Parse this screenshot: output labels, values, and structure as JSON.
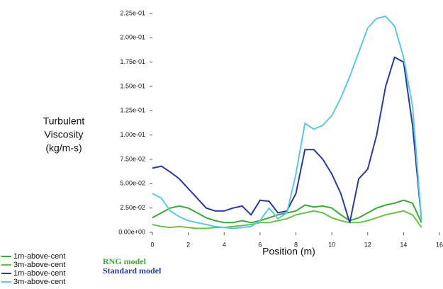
{
  "chart_data": {
    "type": "line",
    "y_label": [
      "Turbulent",
      "Viscosity",
      "(kg/m-s)"
    ],
    "x_label": "Position (m)",
    "x": [
      0,
      0.5,
      1,
      1.5,
      2,
      2.5,
      3,
      3.5,
      4,
      4.5,
      5,
      5.5,
      6,
      6.5,
      7,
      7.5,
      8,
      8.5,
      9,
      9.5,
      10,
      10.5,
      11,
      11.5,
      12,
      12.5,
      13,
      13.5,
      14,
      14.5,
      15
    ],
    "series": [
      {
        "name": "1m-above-cent",
        "color": "#3aa83a",
        "values": [
          0.015,
          0.02,
          0.025,
          0.027,
          0.025,
          0.02,
          0.015,
          0.012,
          0.01,
          0.01,
          0.012,
          0.01,
          0.012,
          0.015,
          0.018,
          0.02,
          0.022,
          0.028,
          0.026,
          0.027,
          0.025,
          0.018,
          0.012,
          0.015,
          0.02,
          0.025,
          0.028,
          0.03,
          0.033,
          0.03,
          0.01
        ]
      },
      {
        "name": "3m-above-cent",
        "color": "#6cc04a",
        "values": [
          0.008,
          0.006,
          0.005,
          0.006,
          0.005,
          0.004,
          0.004,
          0.005,
          0.005,
          0.006,
          0.007,
          0.008,
          0.01,
          0.01,
          0.012,
          0.014,
          0.018,
          0.02,
          0.022,
          0.02,
          0.015,
          0.012,
          0.01,
          0.01,
          0.012,
          0.015,
          0.018,
          0.02,
          0.022,
          0.018,
          0.005
        ]
      },
      {
        "name": "1m-above-cent",
        "color": "#2a3a9a",
        "values": [
          0.066,
          0.068,
          0.062,
          0.055,
          0.045,
          0.035,
          0.025,
          0.022,
          0.022,
          0.025,
          0.027,
          0.018,
          0.033,
          0.032,
          0.02,
          0.022,
          0.04,
          0.085,
          0.085,
          0.075,
          0.06,
          0.04,
          0.01,
          0.055,
          0.065,
          0.1,
          0.15,
          0.18,
          0.175,
          0.11,
          0.012
        ]
      },
      {
        "name": "3m-above-cent",
        "color": "#5cc8e0",
        "values": [
          0.04,
          0.035,
          0.022,
          0.016,
          0.012,
          0.01,
          0.008,
          0.006,
          0.005,
          0.004,
          0.005,
          0.006,
          0.012,
          0.025,
          0.014,
          0.02,
          0.06,
          0.112,
          0.106,
          0.11,
          0.12,
          0.138,
          0.16,
          0.185,
          0.21,
          0.22,
          0.222,
          0.212,
          0.18,
          0.13,
          0.012
        ]
      }
    ],
    "annotations": [
      {
        "text": "RNG model",
        "color": "#3aa83a"
      },
      {
        "text": "Standard model",
        "color": "#2a3a9a"
      }
    ],
    "xlim": [
      0,
      16
    ],
    "xticks": [
      0,
      2,
      4,
      6,
      8,
      10,
      12,
      14,
      16
    ],
    "ylim": [
      0,
      0.225
    ],
    "yticks": [
      {
        "value": 0,
        "label": "0.00e+00"
      },
      {
        "value": 0.025,
        "label": "2.50e-02"
      },
      {
        "value": 0.05,
        "label": "5.00e-02"
      },
      {
        "value": 0.075,
        "label": "7.50e-02"
      },
      {
        "value": 0.1,
        "label": "1.00e-01"
      },
      {
        "value": 0.125,
        "label": "1.25e-01"
      },
      {
        "value": 0.15,
        "label": "1.50e-01"
      },
      {
        "value": 0.175,
        "label": "1.75e-01"
      },
      {
        "value": 0.2,
        "label": "2.00e-01"
      },
      {
        "value": 0.225,
        "label": "2.25e-01"
      }
    ],
    "legend": "bottom-left"
  }
}
